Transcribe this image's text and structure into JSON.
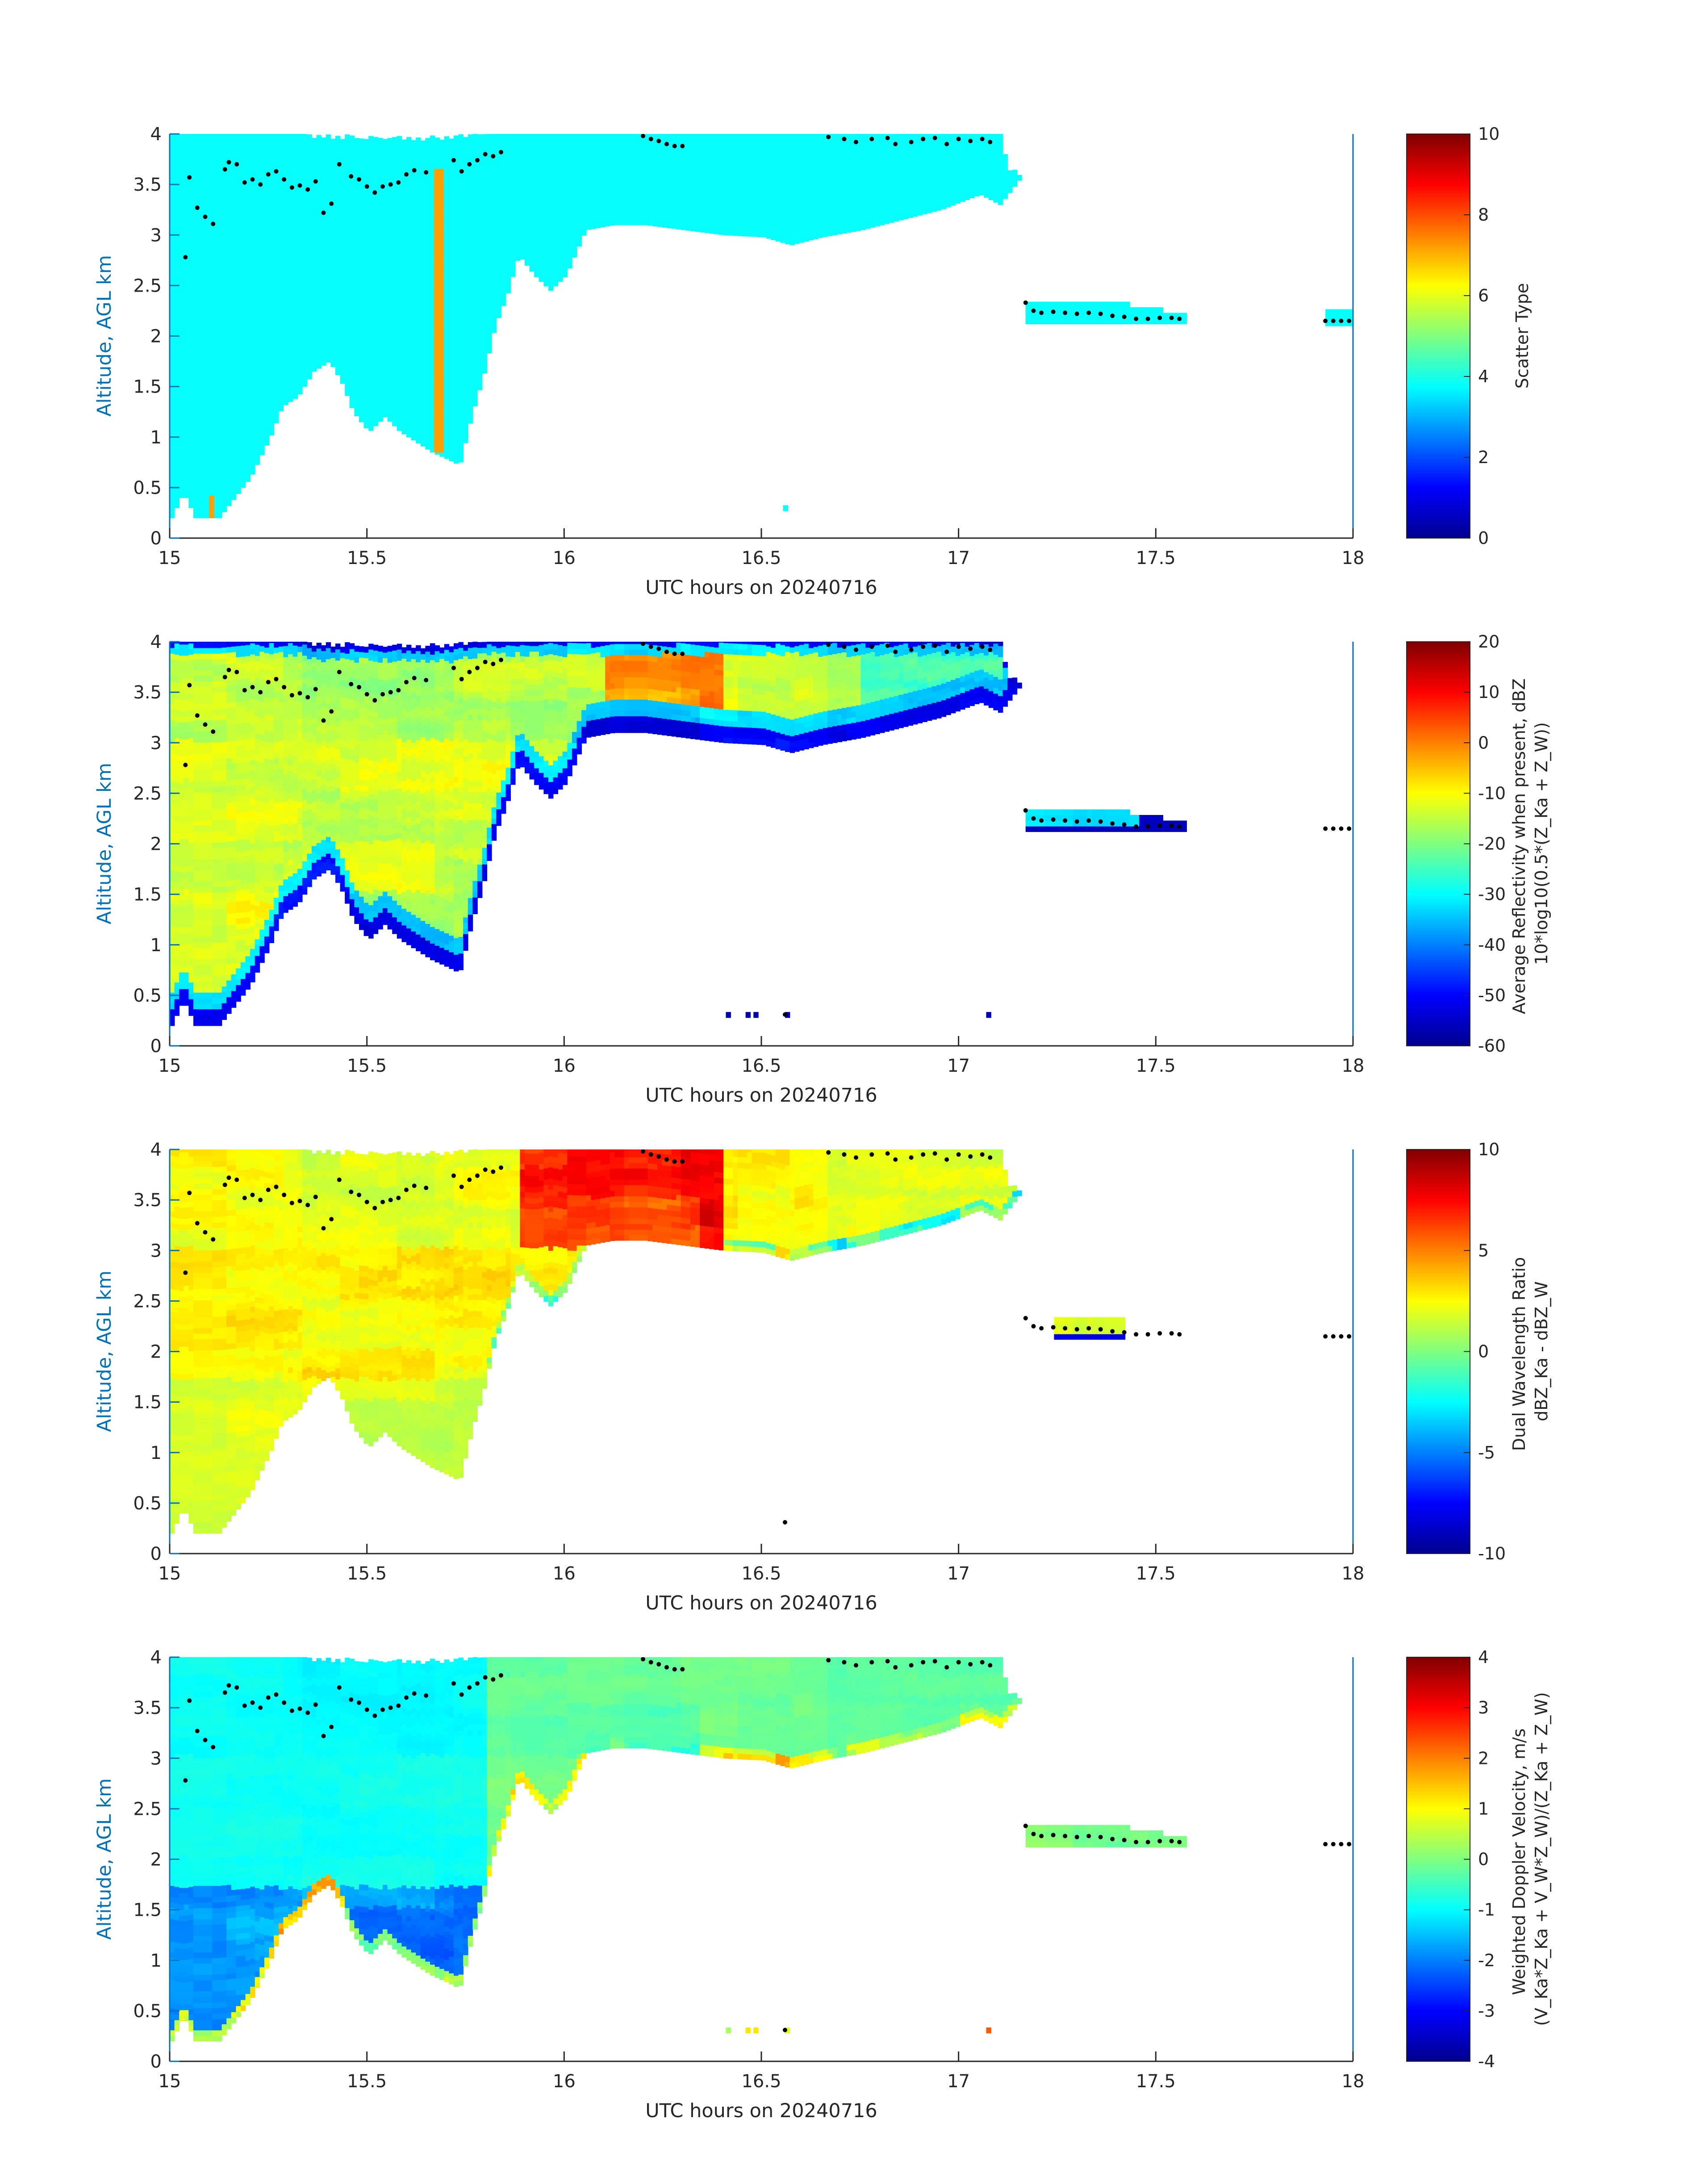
{
  "figure": {
    "xlabel": "UTC hours on 20240716",
    "ylabel": "Altitude, AGL km",
    "xticks": [
      "15",
      "15.5",
      "16",
      "16.5",
      "17",
      "17.5",
      "18"
    ],
    "yticks": [
      "0",
      "0.5",
      "1",
      "1.5",
      "2",
      "2.5",
      "3",
      "3.5",
      "4"
    ]
  },
  "colors": {
    "axis_blue": "#0072bd",
    "cloud_top_dots": "#000000",
    "colormap": "jet"
  },
  "chart_data": [
    {
      "type": "heatmap",
      "name": "scatter-type",
      "xlabel": "UTC hours on 20240716",
      "ylabel": "Altitude, AGL km",
      "xlim": [
        15,
        18
      ],
      "ylim": [
        0,
        4
      ],
      "colorbar": {
        "label_lines": [
          "Scatter Type"
        ],
        "range": [
          0,
          10
        ],
        "ticks": [
          "10",
          "8",
          "6",
          "4",
          "2",
          "0"
        ]
      },
      "dominant_value": 3.8,
      "regions": [
        {
          "x": [
            15.0,
            17.15
          ],
          "y_bottom": 0.2,
          "y_top": 4.0,
          "value": 3.8
        },
        {
          "x": [
            15.67,
            15.7
          ],
          "y_bottom": 0.85,
          "y_top": 3.65,
          "value": 7.2
        },
        {
          "x": [
            15.1,
            15.12
          ],
          "y_bottom": 0.2,
          "y_top": 0.42,
          "value": 7.2
        },
        {
          "x": [
            17.17,
            17.57
          ],
          "y_bottom": 2.12,
          "y_top": 2.32,
          "value": 3.8
        },
        {
          "x": [
            17.93,
            18.0
          ],
          "y_bottom": 2.1,
          "y_top": 2.25,
          "value": 3.8
        }
      ]
    },
    {
      "type": "heatmap",
      "name": "average-reflectivity",
      "xlabel": "UTC hours on 20240716",
      "ylabel": "Altitude, AGL km",
      "xlim": [
        15,
        18
      ],
      "ylim": [
        0,
        4
      ],
      "colorbar": {
        "label_lines": [
          "Average Reflectivity when present, dBZ",
          "10*log10(0.5*(Z_Ka + Z_W))"
        ],
        "range": [
          -60,
          20
        ],
        "ticks": [
          "20",
          "10",
          "0",
          "-10",
          "-20",
          "-30",
          "-40",
          "-50",
          "-60"
        ]
      },
      "value_range_observed": [
        -60,
        5
      ],
      "regions": [
        {
          "x": [
            15.0,
            15.8
          ],
          "y": [
            0.5,
            3.5
          ],
          "value": -20
        },
        {
          "x": [
            16.1,
            16.4
          ],
          "y": [
            3.3,
            4.0
          ],
          "value": -5
        },
        {
          "x": [
            16.2,
            16.3
          ],
          "y": [
            3.6,
            4.0
          ],
          "value": 2
        },
        {
          "x": [
            15.0,
            17.15
          ],
          "edge": "lower",
          "value": -55
        },
        {
          "x": [
            17.22,
            17.45
          ],
          "y": [
            2.12,
            2.3
          ],
          "value": -38
        }
      ]
    },
    {
      "type": "heatmap",
      "name": "dual-wavelength-ratio",
      "xlabel": "UTC hours on 20240716",
      "ylabel": "Altitude, AGL km",
      "xlim": [
        15,
        18
      ],
      "ylim": [
        0,
        4
      ],
      "colorbar": {
        "label_lines": [
          "Dual Wavelength Ratio",
          "dBZ_Ka - dBZ_W"
        ],
        "range": [
          -10,
          10
        ],
        "ticks": [
          "10",
          "5",
          "0",
          "-5",
          "-10"
        ]
      },
      "value_range_observed": [
        -10,
        9
      ],
      "regions": [
        {
          "x": [
            15.0,
            15.8
          ],
          "y": [
            0.3,
            4.0
          ],
          "value": 1.5
        },
        {
          "x": [
            15.9,
            16.4
          ],
          "y": [
            3.0,
            4.0
          ],
          "value": 6.5
        },
        {
          "x": [
            16.4,
            17.1
          ],
          "y": [
            3.0,
            4.0
          ],
          "value": 1.0
        },
        {
          "x": [
            17.25,
            17.42
          ],
          "y": [
            2.15,
            2.35
          ],
          "value": 0.5
        }
      ]
    },
    {
      "type": "heatmap",
      "name": "weighted-doppler-velocity",
      "xlabel": "UTC hours on 20240716",
      "ylabel": "Altitude, AGL km",
      "xlim": [
        15,
        18
      ],
      "ylim": [
        0,
        4
      ],
      "colorbar": {
        "label_lines": [
          "Weighted Doppler Velocity, m/s",
          "(V_Ka*Z_Ka + V_W*Z_W)/(Z_Ka + Z_W)"
        ],
        "range": [
          -4,
          4
        ],
        "ticks": [
          "4",
          "3",
          "2",
          "1",
          "0",
          "-1",
          "-2",
          "-3",
          "-4"
        ]
      },
      "value_range_observed": [
        -3.5,
        2.5
      ],
      "regions": [
        {
          "x": [
            15.0,
            15.8
          ],
          "y": [
            1.7,
            4.0
          ],
          "value": -1.1
        },
        {
          "x": [
            15.0,
            15.8
          ],
          "y": [
            0.2,
            1.7
          ],
          "value": -2.4
        },
        {
          "x": [
            16.0,
            17.15
          ],
          "y": [
            3.0,
            4.0
          ],
          "value": -0.4
        },
        {
          "x": [
            17.22,
            17.5
          ],
          "y": [
            2.12,
            2.3
          ],
          "value": -0.5
        }
      ]
    }
  ],
  "cloud_top_markers": [
    [
      15.04,
      2.78
    ],
    [
      15.05,
      3.57
    ],
    [
      15.07,
      3.27
    ],
    [
      15.09,
      3.18
    ],
    [
      15.11,
      3.11
    ],
    [
      15.14,
      3.65
    ],
    [
      15.15,
      3.72
    ],
    [
      15.17,
      3.7
    ],
    [
      15.19,
      3.52
    ],
    [
      15.21,
      3.55
    ],
    [
      15.23,
      3.5
    ],
    [
      15.25,
      3.6
    ],
    [
      15.27,
      3.63
    ],
    [
      15.29,
      3.55
    ],
    [
      15.31,
      3.47
    ],
    [
      15.33,
      3.49
    ],
    [
      15.35,
      3.45
    ],
    [
      15.37,
      3.53
    ],
    [
      15.39,
      3.22
    ],
    [
      15.41,
      3.31
    ],
    [
      15.43,
      3.7
    ],
    [
      15.46,
      3.58
    ],
    [
      15.48,
      3.55
    ],
    [
      15.5,
      3.48
    ],
    [
      15.52,
      3.42
    ],
    [
      15.54,
      3.48
    ],
    [
      15.56,
      3.5
    ],
    [
      15.58,
      3.52
    ],
    [
      15.6,
      3.6
    ],
    [
      15.62,
      3.64
    ],
    [
      15.65,
      3.62
    ],
    [
      15.72,
      3.74
    ],
    [
      15.74,
      3.63
    ],
    [
      15.76,
      3.7
    ],
    [
      15.78,
      3.74
    ],
    [
      15.8,
      3.8
    ],
    [
      15.82,
      3.78
    ],
    [
      15.84,
      3.82
    ],
    [
      16.2,
      3.98
    ],
    [
      16.22,
      3.95
    ],
    [
      16.24,
      3.93
    ],
    [
      16.26,
      3.9
    ],
    [
      16.28,
      3.88
    ],
    [
      16.3,
      3.88
    ],
    [
      16.67,
      3.97
    ],
    [
      16.71,
      3.95
    ],
    [
      16.74,
      3.92
    ],
    [
      16.78,
      3.95
    ],
    [
      16.82,
      3.96
    ],
    [
      16.84,
      3.9
    ],
    [
      16.88,
      3.92
    ],
    [
      16.91,
      3.95
    ],
    [
      16.94,
      3.96
    ],
    [
      16.97,
      3.9
    ],
    [
      17.0,
      3.95
    ],
    [
      17.03,
      3.93
    ],
    [
      17.06,
      3.95
    ],
    [
      17.08,
      3.92
    ],
    [
      16.56,
      0.31
    ],
    [
      17.17,
      2.33
    ],
    [
      17.19,
      2.25
    ],
    [
      17.21,
      2.23
    ],
    [
      17.24,
      2.24
    ],
    [
      17.27,
      2.23
    ],
    [
      17.3,
      2.22
    ],
    [
      17.33,
      2.23
    ],
    [
      17.36,
      2.22
    ],
    [
      17.39,
      2.2
    ],
    [
      17.42,
      2.19
    ],
    [
      17.45,
      2.17
    ],
    [
      17.48,
      2.17
    ],
    [
      17.51,
      2.18
    ],
    [
      17.54,
      2.18
    ],
    [
      17.56,
      2.17
    ],
    [
      17.93,
      2.15
    ],
    [
      17.95,
      2.15
    ],
    [
      17.97,
      2.15
    ],
    [
      17.99,
      2.15
    ]
  ]
}
